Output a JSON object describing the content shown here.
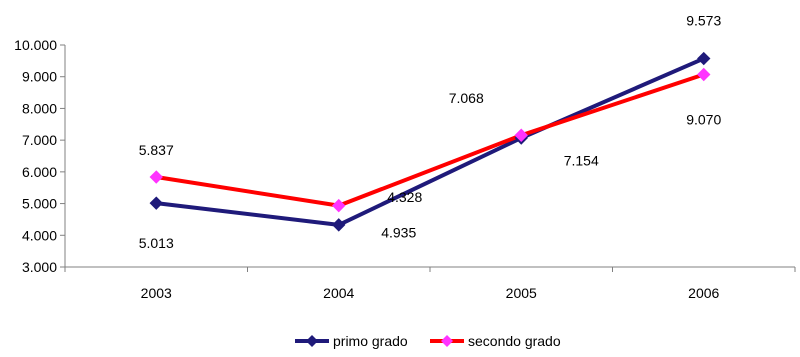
{
  "chart_data": {
    "type": "line",
    "categories": [
      "2003",
      "2004",
      "2005",
      "2006"
    ],
    "ylim": [
      3000,
      10000
    ],
    "yticks": [
      3000,
      4000,
      5000,
      6000,
      7000,
      8000,
      9000,
      10000
    ],
    "ytick_labels": [
      "3.000",
      "4.000",
      "5.000",
      "6.000",
      "7.000",
      "8.000",
      "9.000",
      "10.000"
    ],
    "grid": false,
    "legend_position": "bottom",
    "series": [
      {
        "name": "primo grado",
        "color": "#1f1a7a",
        "marker": "diamond",
        "marker_color": "#1f1a7a",
        "values": [
          5013,
          4328,
          7068,
          9573
        ],
        "labels": [
          "5.013",
          "4.328",
          "7.068",
          "9.573"
        ]
      },
      {
        "name": "secondo grado",
        "color": "#ff0000",
        "marker": "diamond",
        "marker_color": "#ff33ff",
        "values": [
          5837,
          4935,
          7154,
          9070
        ],
        "labels": [
          "5.837",
          "4.935",
          "7.154",
          "9.070"
        ]
      }
    ]
  }
}
